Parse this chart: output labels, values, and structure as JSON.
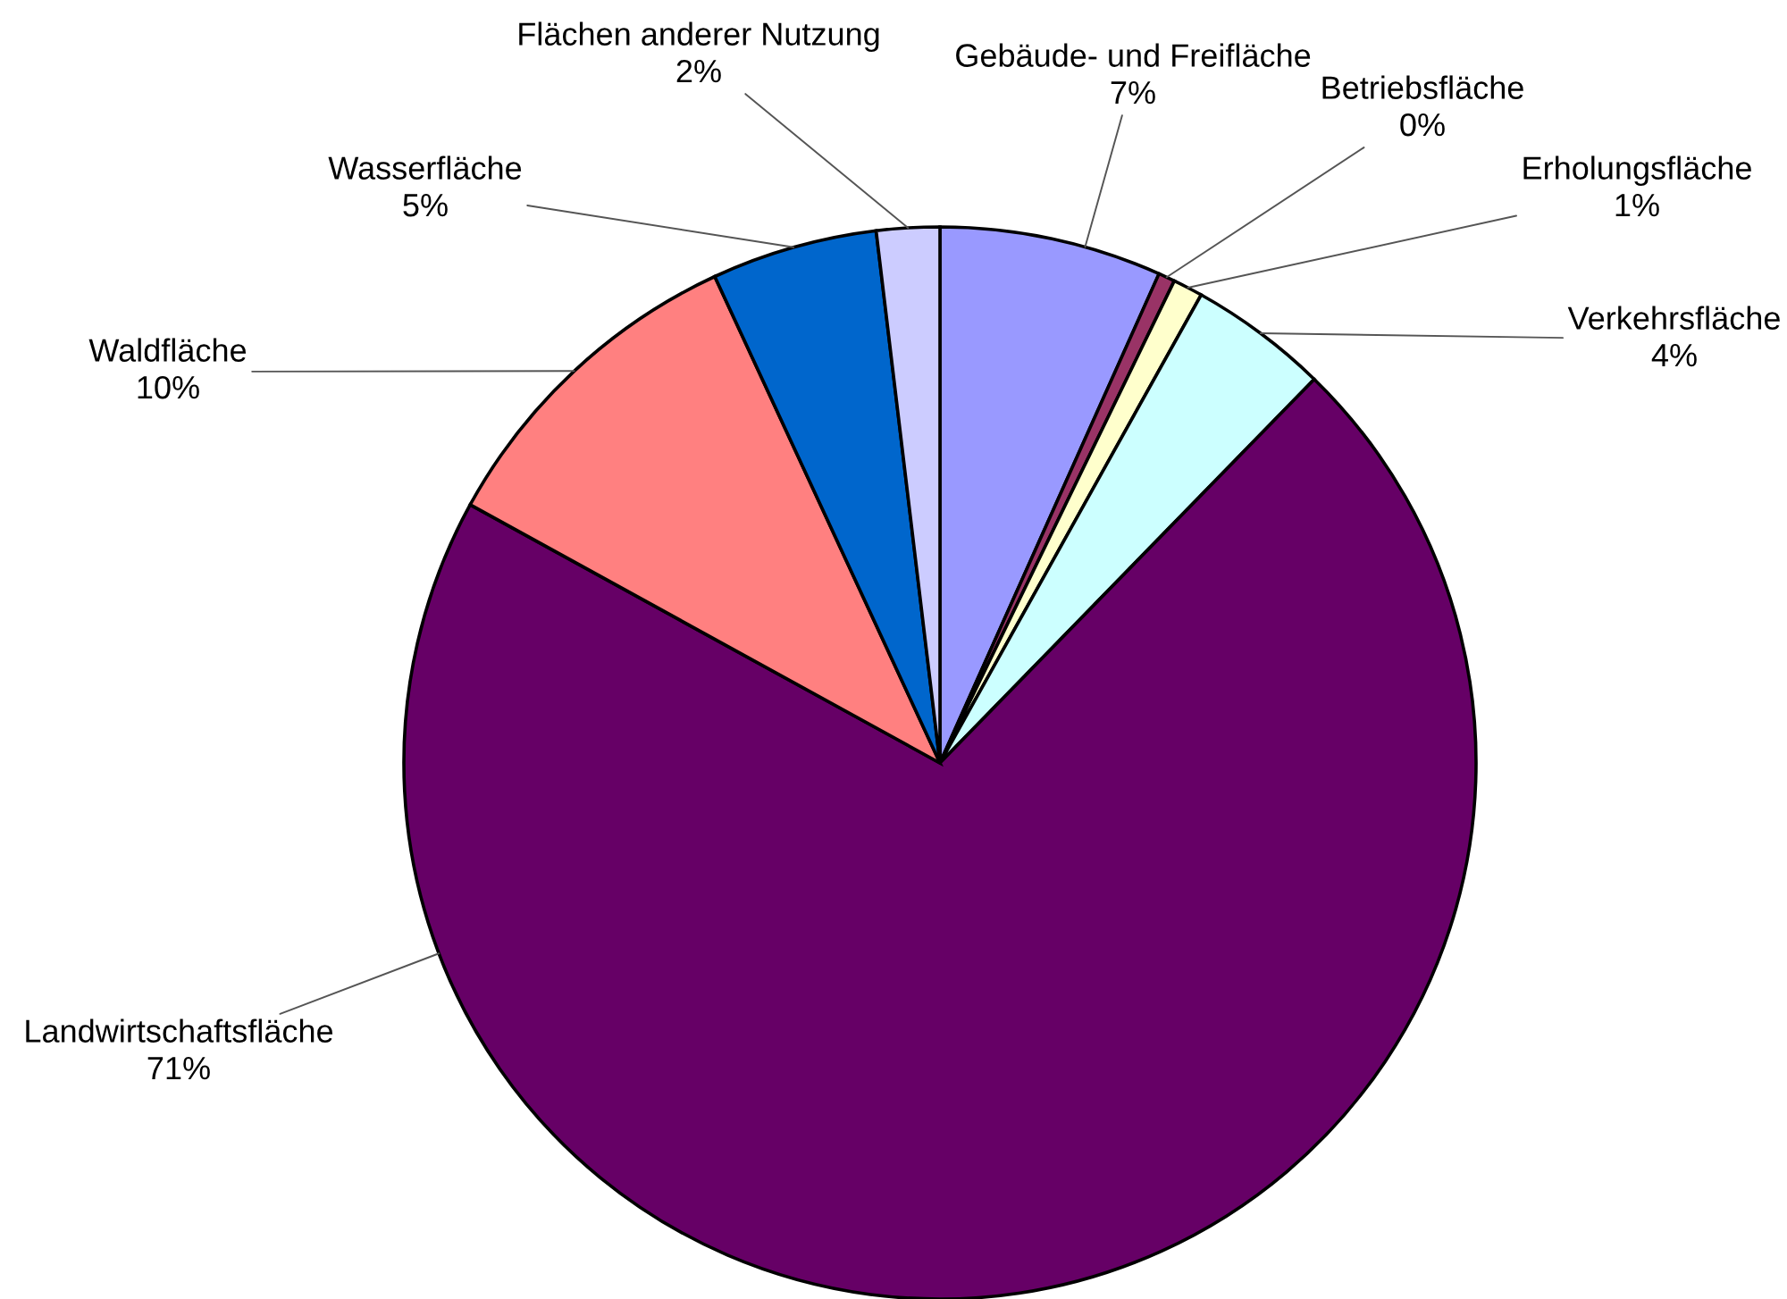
{
  "chart_data": {
    "type": "pie",
    "categories": [
      "Gebäude- und Freifläche",
      "Betriebsfläche",
      "Erholungsfläche",
      "Verkehrsfläche",
      "Landwirtschaftsfläche",
      "Waldfläche",
      "Wasserfläche",
      "Flächen anderer Nutzung"
    ],
    "values": [
      6.7,
      0.5,
      0.9,
      4.2,
      70.7,
      10.1,
      5.0,
      1.9
    ],
    "value_labels": [
      "7%",
      "0%",
      "1%",
      "4%",
      "71%",
      "10%",
      "5%",
      "2%"
    ],
    "colors": [
      "#9999ff",
      "#993366",
      "#ffffcc",
      "#ccffff",
      "#660066",
      "#ff8080",
      "#0066cc",
      "#ccccff"
    ],
    "legend": false
  }
}
